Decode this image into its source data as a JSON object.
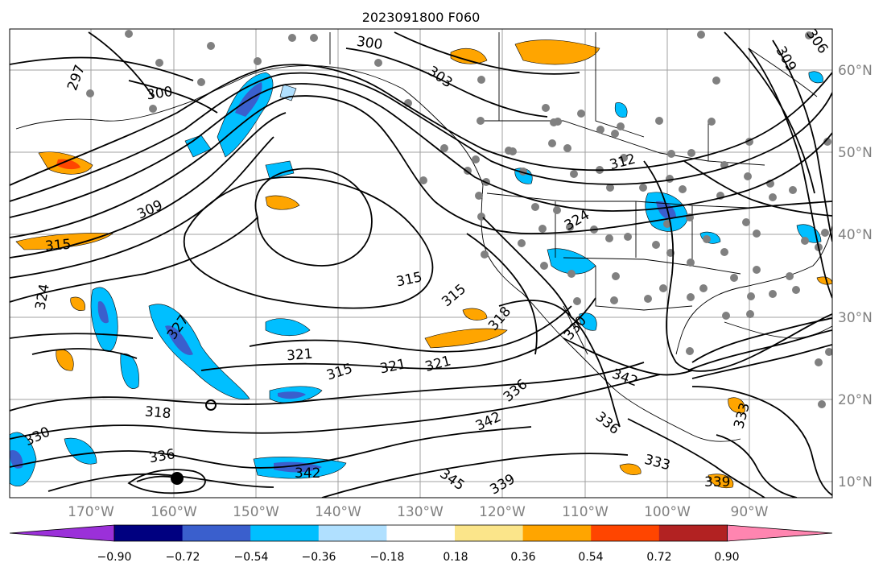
{
  "title": "2023091800 F060",
  "lon_ticks": [
    "170°W",
    "160°W",
    "150°W",
    "140°W",
    "130°W",
    "120°W",
    "110°W",
    "100°W",
    "90°W"
  ],
  "lat_ticks": [
    "60°N",
    "50°N",
    "40°N",
    "30°N",
    "20°N",
    "10°N"
  ],
  "colorbar": {
    "tick_labels": [
      "−0.90",
      "−0.72",
      "−0.54",
      "−0.36",
      "−0.18",
      "0.18",
      "0.36",
      "0.54",
      "0.72",
      "0.90"
    ],
    "colors": [
      "#9b30d9",
      "#000080",
      "#3a5fcd",
      "#00bfff",
      "#b0e0ff",
      "#ffffff",
      "#fbe58a",
      "#ffa500",
      "#ff4500",
      "#b22222",
      "#ff85b0"
    ]
  },
  "contour_labels": [
    {
      "text": "297"
    },
    {
      "text": "300"
    },
    {
      "text": "300"
    },
    {
      "text": "303"
    },
    {
      "text": "306"
    },
    {
      "text": "309"
    },
    {
      "text": "309"
    },
    {
      "text": "312"
    },
    {
      "text": "315"
    },
    {
      "text": "315"
    },
    {
      "text": "315"
    },
    {
      "text": "315"
    },
    {
      "text": "318"
    },
    {
      "text": "318"
    },
    {
      "text": "321"
    },
    {
      "text": "321"
    },
    {
      "text": "321"
    },
    {
      "text": "324"
    },
    {
      "text": "324"
    },
    {
      "text": "327"
    },
    {
      "text": "330"
    },
    {
      "text": "330"
    },
    {
      "text": "333"
    },
    {
      "text": "333"
    },
    {
      "text": "336"
    },
    {
      "text": "336"
    },
    {
      "text": "336"
    },
    {
      "text": "339"
    },
    {
      "text": "339"
    },
    {
      "text": "342"
    },
    {
      "text": "342"
    },
    {
      "text": "342"
    },
    {
      "text": "345"
    }
  ]
}
